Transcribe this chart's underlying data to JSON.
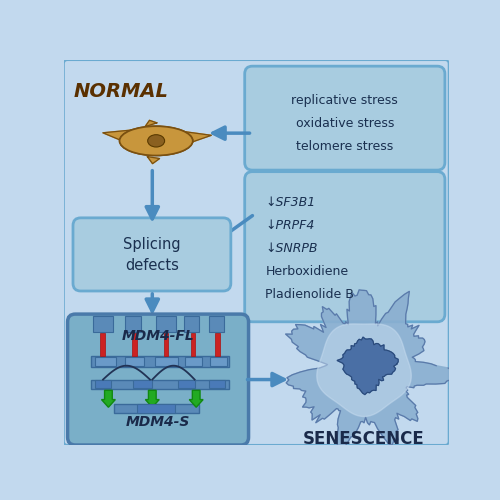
{
  "bg_color": "#c2d9ee",
  "box_face": "#a8cce0",
  "box_edge": "#6aaad0",
  "mdm4_box_face": "#7aafc8",
  "mdm4_box_edge": "#4a7aaa",
  "arrow_color": "#4a8bbf",
  "arrow_face": "#5599cc",
  "title_normal": "NORMAL",
  "title_senescence": "SENESCENCE",
  "stress_lines": [
    "replicative stress",
    "oxidative stress",
    "telomere stress"
  ],
  "factor_lines": [
    "↓SF3B1",
    "↓PRPF4",
    "↓SNRPB",
    "Herboxidiene",
    "Pladienolide B"
  ],
  "factor_italic": [
    true,
    true,
    true,
    false,
    false
  ],
  "splicing_text": "Splicing\ndefects",
  "mdm4fl_text": "MDM4-FL",
  "mdm4s_text": "MDM4-S",
  "normal_cell_color": "#c8963c",
  "normal_cell_edge": "#7a5010",
  "normal_nucleus_color": "#8a6020",
  "sen_cell_color_outer": "#8aafd0",
  "sen_cell_color_inner": "#c8ddf0",
  "sen_nucleus_color": "#4a6fa5",
  "exon_color": "#5a8ab8",
  "rail_color": "#3a6a9a",
  "red_connector": "#cc2222",
  "green_arrow": "#22aa22",
  "splice_arc_color": "#223355",
  "text_dark": "#1a3050",
  "text_normal_title": "#5a3000",
  "text_senescence": "#1a2a4a"
}
